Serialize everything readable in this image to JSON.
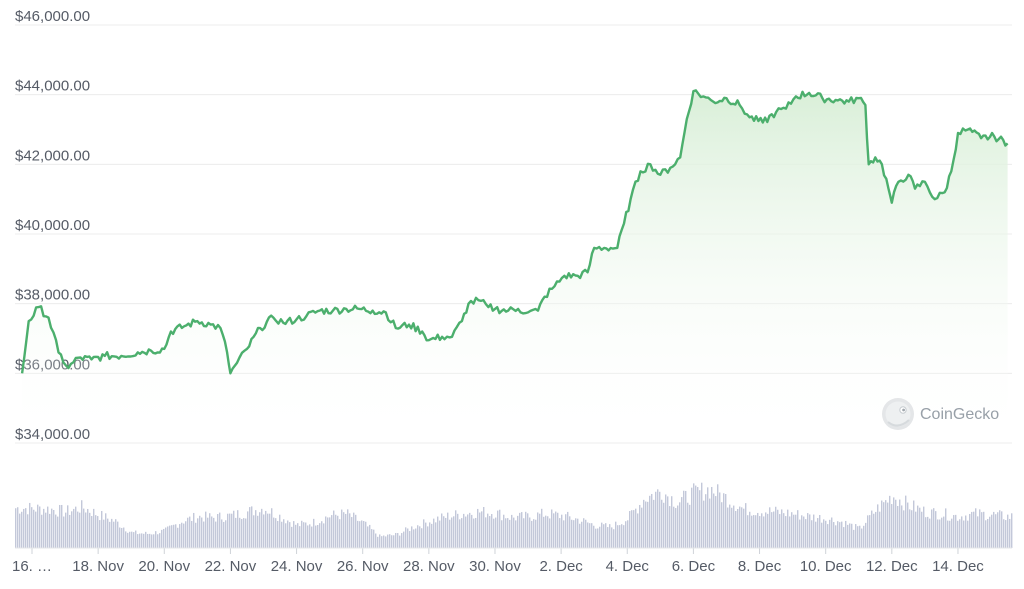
{
  "chart_data": {
    "type": "area",
    "y_axis": {
      "ticks": [
        "$46,000.00",
        "$44,000.00",
        "$42,000.00",
        "$40,000.00",
        "$38,000.00",
        "$36,000.00",
        "$34,000.00"
      ],
      "tick_values": [
        46000,
        44000,
        42000,
        40000,
        38000,
        36000,
        34000
      ],
      "ylim": [
        34000,
        46000
      ]
    },
    "x_axis": {
      "ticks": [
        "16. …",
        "18. Nov",
        "20. Nov",
        "22. Nov",
        "24. Nov",
        "26. Nov",
        "28. Nov",
        "30. Nov",
        "2. Dec",
        "4. Dec",
        "6. Dec",
        "8. Dec",
        "10. Dec",
        "12. Dec",
        "14. Dec"
      ],
      "tick_day_offsets": [
        0,
        2,
        4,
        6,
        8,
        10,
        12,
        14,
        16,
        18,
        20,
        22,
        24,
        26,
        28
      ]
    },
    "series": [
      {
        "values": [
          [
            -0.3,
            36000
          ],
          [
            -0.1,
            37500
          ],
          [
            0.2,
            37900
          ],
          [
            0.5,
            37600
          ],
          [
            0.8,
            36600
          ],
          [
            1.1,
            36150
          ],
          [
            1.4,
            36450
          ],
          [
            1.8,
            36400
          ],
          [
            2.2,
            36500
          ],
          [
            2.7,
            36500
          ],
          [
            3.2,
            36600
          ],
          [
            3.6,
            36650
          ],
          [
            4.0,
            36700
          ],
          [
            4.2,
            37200
          ],
          [
            4.6,
            37350
          ],
          [
            5.0,
            37500
          ],
          [
            5.4,
            37400
          ],
          [
            5.7,
            37300
          ],
          [
            5.9,
            36600
          ],
          [
            6.0,
            36000
          ],
          [
            6.2,
            36300
          ],
          [
            6.5,
            36700
          ],
          [
            6.9,
            37300
          ],
          [
            7.3,
            37600
          ],
          [
            7.6,
            37450
          ],
          [
            8.0,
            37550
          ],
          [
            8.3,
            37650
          ],
          [
            8.7,
            37800
          ],
          [
            9.1,
            37800
          ],
          [
            9.5,
            37850
          ],
          [
            9.9,
            37850
          ],
          [
            10.3,
            37800
          ],
          [
            10.7,
            37750
          ],
          [
            11.0,
            37300
          ],
          [
            11.4,
            37400
          ],
          [
            11.8,
            37200
          ],
          [
            12.0,
            36950
          ],
          [
            12.4,
            37050
          ],
          [
            12.7,
            37050
          ],
          [
            13.0,
            37500
          ],
          [
            13.2,
            38000
          ],
          [
            13.5,
            38100
          ],
          [
            13.8,
            37900
          ],
          [
            14.0,
            37850
          ],
          [
            14.4,
            37800
          ],
          [
            14.7,
            37850
          ],
          [
            15.0,
            37750
          ],
          [
            15.3,
            37800
          ],
          [
            15.5,
            38200
          ],
          [
            15.8,
            38500
          ],
          [
            16.1,
            38800
          ],
          [
            16.5,
            38800
          ],
          [
            16.8,
            38900
          ],
          [
            17.0,
            39600
          ],
          [
            17.3,
            39600
          ],
          [
            17.7,
            39600
          ],
          [
            17.9,
            40300
          ],
          [
            18.1,
            41000
          ],
          [
            18.4,
            41800
          ],
          [
            18.7,
            42000
          ],
          [
            19.0,
            41700
          ],
          [
            19.3,
            41900
          ],
          [
            19.6,
            42200
          ],
          [
            19.8,
            43300
          ],
          [
            20.0,
            44100
          ],
          [
            20.3,
            43950
          ],
          [
            20.6,
            43800
          ],
          [
            21.0,
            43900
          ],
          [
            21.4,
            43700
          ],
          [
            21.7,
            43350
          ],
          [
            22.1,
            43200
          ],
          [
            22.5,
            43500
          ],
          [
            22.8,
            43600
          ],
          [
            23.1,
            43950
          ],
          [
            23.5,
            44050
          ],
          [
            23.9,
            43900
          ],
          [
            24.3,
            43850
          ],
          [
            24.7,
            43800
          ],
          [
            25.0,
            43900
          ],
          [
            25.2,
            43700
          ],
          [
            25.3,
            42000
          ],
          [
            25.5,
            42200
          ],
          [
            25.7,
            42000
          ],
          [
            25.9,
            41300
          ],
          [
            26.0,
            40900
          ],
          [
            26.2,
            41500
          ],
          [
            26.5,
            41700
          ],
          [
            26.7,
            41300
          ],
          [
            27.0,
            41500
          ],
          [
            27.3,
            41000
          ],
          [
            27.6,
            41200
          ],
          [
            27.8,
            41800
          ],
          [
            28.0,
            42900
          ],
          [
            28.3,
            43000
          ],
          [
            28.7,
            42750
          ],
          [
            29.1,
            42800
          ],
          [
            29.5,
            42600
          ]
        ]
      }
    ],
    "volume": [
      [
        -0.3,
        0.42
      ],
      [
        0.5,
        0.41
      ],
      [
        1.0,
        0.38
      ],
      [
        1.5,
        0.43
      ],
      [
        2.0,
        0.35
      ],
      [
        2.5,
        0.28
      ],
      [
        3.0,
        0.16
      ],
      [
        3.5,
        0.15
      ],
      [
        4.0,
        0.18
      ],
      [
        4.5,
        0.28
      ],
      [
        5.0,
        0.33
      ],
      [
        5.5,
        0.32
      ],
      [
        6.0,
        0.34
      ],
      [
        6.5,
        0.38
      ],
      [
        7.0,
        0.42
      ],
      [
        7.5,
        0.33
      ],
      [
        8.0,
        0.24
      ],
      [
        8.5,
        0.27
      ],
      [
        9.0,
        0.34
      ],
      [
        9.5,
        0.36
      ],
      [
        10.0,
        0.26
      ],
      [
        10.5,
        0.12
      ],
      [
        11.0,
        0.14
      ],
      [
        11.5,
        0.22
      ],
      [
        12.0,
        0.28
      ],
      [
        12.5,
        0.33
      ],
      [
        13.0,
        0.36
      ],
      [
        13.5,
        0.38
      ],
      [
        14.0,
        0.37
      ],
      [
        14.5,
        0.32
      ],
      [
        15.0,
        0.33
      ],
      [
        15.5,
        0.36
      ],
      [
        16.0,
        0.34
      ],
      [
        16.5,
        0.3
      ],
      [
        17.0,
        0.24
      ],
      [
        17.5,
        0.22
      ],
      [
        18.0,
        0.31
      ],
      [
        18.5,
        0.52
      ],
      [
        19.0,
        0.6
      ],
      [
        19.5,
        0.48
      ],
      [
        20.0,
        0.58
      ],
      [
        20.5,
        0.62
      ],
      [
        21.0,
        0.52
      ],
      [
        21.5,
        0.41
      ],
      [
        22.0,
        0.39
      ],
      [
        22.5,
        0.38
      ],
      [
        23.0,
        0.36
      ],
      [
        23.5,
        0.33
      ],
      [
        24.0,
        0.31
      ],
      [
        24.5,
        0.27
      ],
      [
        25.0,
        0.2
      ],
      [
        25.5,
        0.4
      ],
      [
        26.0,
        0.55
      ],
      [
        26.5,
        0.45
      ],
      [
        27.0,
        0.38
      ],
      [
        27.5,
        0.36
      ],
      [
        28.0,
        0.33
      ],
      [
        28.5,
        0.36
      ],
      [
        29.0,
        0.35
      ],
      [
        29.5,
        0.33
      ]
    ],
    "grid": true,
    "legend": "none",
    "colors": {
      "line": "#4caf6d",
      "area_top": "#d9efd8",
      "volume": "#c3c8d9",
      "grid": "#ececec"
    }
  },
  "watermark": {
    "text": "CoinGecko",
    "icon": "gecko-logo-icon"
  }
}
